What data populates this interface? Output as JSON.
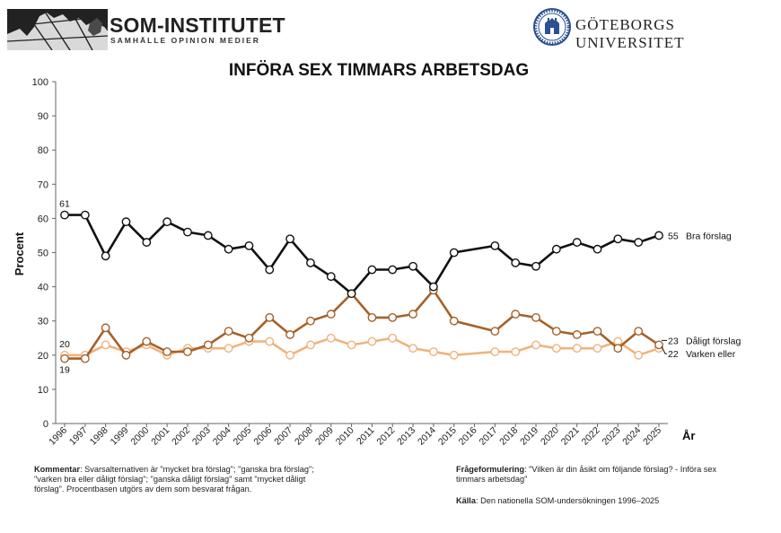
{
  "header": {
    "som_name": "SOM-INSTITUTET",
    "som_subtitle": "SAMHÄLLE OPINION MEDIER",
    "university_name": "GÖTEBORGS UNIVERSITET"
  },
  "colors": {
    "bra": "#111111",
    "daligt": "#a5612a",
    "varken": "#efb37d",
    "axis": "#666666",
    "logo_bg": "#222222",
    "seal": "#2c4f91"
  },
  "chart_data": {
    "type": "line",
    "title": "INFÖRA SEX TIMMARS ARBETSDAG",
    "xlabel": "År",
    "ylabel": "Procent",
    "ylim": [
      0,
      100
    ],
    "yticks": [
      0,
      10,
      20,
      30,
      40,
      50,
      60,
      70,
      80,
      90,
      100
    ],
    "x": [
      1996,
      1997,
      1998,
      1999,
      2000,
      2001,
      2002,
      2003,
      2004,
      2005,
      2006,
      2007,
      2008,
      2009,
      2010,
      2011,
      2012,
      2013,
      2014,
      2015,
      2016,
      2017,
      2018,
      2019,
      2020,
      2021,
      2022,
      2023,
      2024,
      2025
    ],
    "xtick_labels": [
      "1996",
      "1997",
      "1998",
      "1999",
      "2000",
      "2001",
      "2002",
      "2003",
      "2004",
      "2005",
      "2006",
      "2007",
      "2008",
      "2009",
      "2010",
      "2011",
      "2012",
      "2013",
      "2014",
      "2015",
      "2016",
      "2017",
      "2018",
      "2019",
      "2020",
      "2021",
      "2022",
      "2023",
      "2024",
      "2025"
    ],
    "series": [
      {
        "name": "Bra förslag",
        "color": "#111111",
        "values": [
          61,
          61,
          49,
          59,
          53,
          59,
          56,
          55,
          51,
          52,
          45,
          54,
          47,
          43,
          38,
          45,
          45,
          46,
          40,
          50,
          null,
          52,
          47,
          46,
          51,
          53,
          51,
          54,
          53,
          55
        ]
      },
      {
        "name": "Dåligt förslag",
        "color": "#a5612a",
        "values": [
          19,
          19,
          28,
          20,
          24,
          21,
          21,
          23,
          27,
          25,
          31,
          26,
          30,
          32,
          38,
          31,
          31,
          32,
          39,
          30,
          null,
          27,
          32,
          31,
          27,
          26,
          27,
          22,
          27,
          23
        ]
      },
      {
        "name": "Varken eller",
        "color": "#efb37d",
        "values": [
          20,
          20,
          23,
          21,
          23,
          20,
          22,
          22,
          22,
          24,
          24,
          20,
          23,
          25,
          23,
          24,
          25,
          22,
          21,
          20,
          null,
          21,
          21,
          23,
          22,
          22,
          22,
          24,
          20,
          22
        ]
      }
    ],
    "annotations": {
      "first_labels": [
        {
          "text": "61",
          "series": 0
        },
        {
          "text": "20",
          "series": 2
        },
        {
          "text": "19",
          "series": 1
        }
      ],
      "end_labels": [
        {
          "value": "55",
          "label": "Bra förslag"
        },
        {
          "value": "23",
          "label": "Dåligt förslag"
        },
        {
          "value": "22",
          "label": "Varken eller"
        }
      ]
    },
    "grid": false,
    "legend": "end-of-line labels"
  },
  "footer": {
    "comment_label": "Kommentar",
    "comment_text": ": Svarsalternativen är \"mycket bra förslag\"; \"ganska bra förslag\"; \"varken bra eller dåligt förslag\"; \"ganska dåligt förslag\" samt \"mycket dåligt förslag\". Procentbasen utgörs av dem som besvarat frågan.",
    "question_label": "Frågeformulering",
    "question_text": ": \"Vilken är din åsikt om följande förslag? - Införa sex timmars arbetsdag\"",
    "source_label": "Källa",
    "source_text": ": Den nationella SOM-undersökningen 1996–2025"
  }
}
